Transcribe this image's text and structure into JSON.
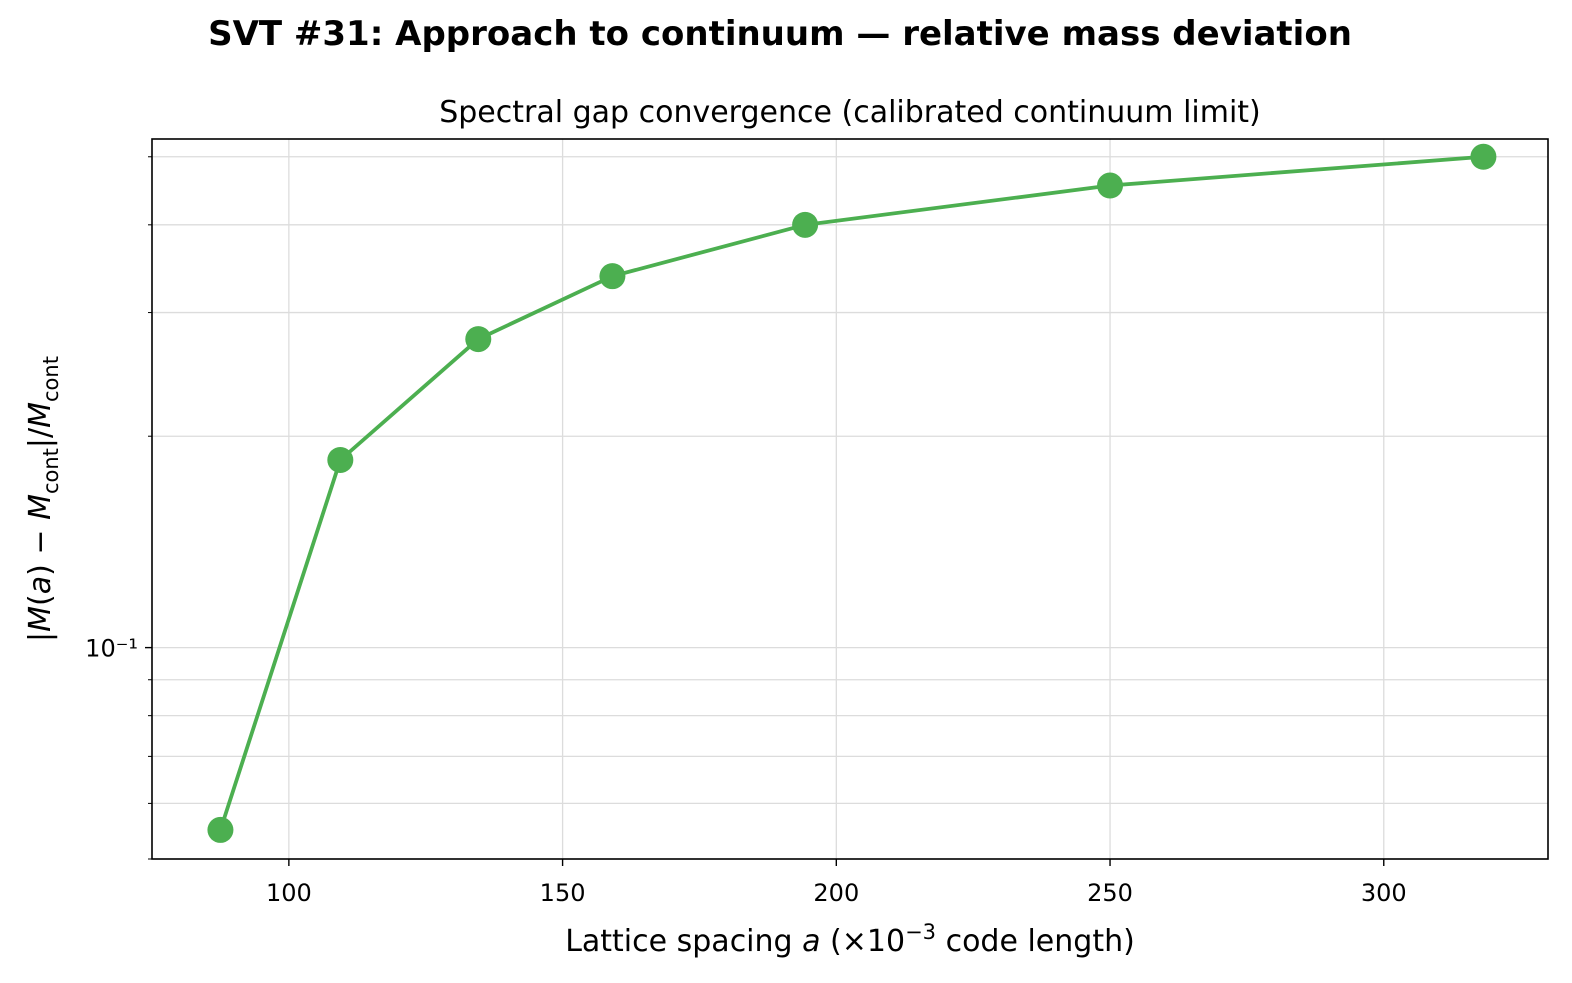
{
  "figure": {
    "suptitle": "SVT #31: Approach to continuum — relative mass deviation"
  },
  "chart_data": {
    "type": "line",
    "title": "Spectral gap convergence (calibrated continuum limit)",
    "xlabel": "Lattice spacing a  (×10⁻³ code length)",
    "ylabel": "|M(a) − M_cont|/M_cont",
    "x_scale": "linear",
    "y_scale": "log",
    "xlim": [
      75,
      330
    ],
    "ylim": [
      0.05,
      0.53
    ],
    "xticks": [
      100,
      150,
      200,
      250,
      300
    ],
    "xtick_labels": [
      "100",
      "150",
      "200",
      "250",
      "300"
    ],
    "ytick_major": [
      0.1
    ],
    "ytick_major_labels": [
      "10⁻¹"
    ],
    "grid": true,
    "legend": "none",
    "series": [
      {
        "color": "#4caf50",
        "marker": "circle",
        "x": [
          87.5,
          109.4,
          134.6,
          159.1,
          194.3,
          250.0,
          318.2
        ],
        "y": [
          0.055,
          0.185,
          0.275,
          0.338,
          0.4,
          0.455,
          0.5
        ]
      }
    ]
  }
}
